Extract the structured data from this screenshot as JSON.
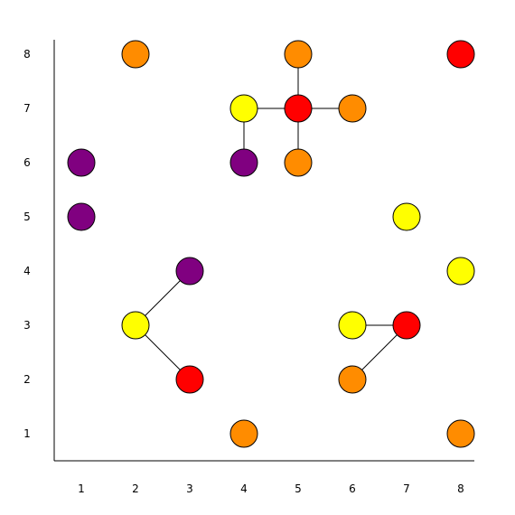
{
  "chart_data": {
    "type": "scatter",
    "x_ticks": [
      "1",
      "2",
      "3",
      "4",
      "5",
      "6",
      "7",
      "8"
    ],
    "y_ticks": [
      "1",
      "2",
      "3",
      "4",
      "5",
      "6",
      "7",
      "8"
    ],
    "xlim": [
      0.5,
      8.25
    ],
    "ylim": [
      0.5,
      8.25
    ],
    "grid": false,
    "colors": {
      "orange": "#ff8c00",
      "red": "#ff0000",
      "yellow": "#ffff00",
      "purple": "#800080"
    },
    "nodes": [
      {
        "id": "n1",
        "x": 2,
        "y": 8,
        "color": "orange"
      },
      {
        "id": "n2",
        "x": 5,
        "y": 8,
        "color": "orange"
      },
      {
        "id": "n3",
        "x": 8,
        "y": 8,
        "color": "red"
      },
      {
        "id": "n4",
        "x": 4,
        "y": 7,
        "color": "yellow"
      },
      {
        "id": "n5",
        "x": 5,
        "y": 7,
        "color": "red"
      },
      {
        "id": "n6",
        "x": 6,
        "y": 7,
        "color": "orange"
      },
      {
        "id": "n7",
        "x": 1,
        "y": 6,
        "color": "purple"
      },
      {
        "id": "n8",
        "x": 4,
        "y": 6,
        "color": "purple"
      },
      {
        "id": "n9",
        "x": 5,
        "y": 6,
        "color": "orange"
      },
      {
        "id": "n10",
        "x": 1,
        "y": 5,
        "color": "purple"
      },
      {
        "id": "n11",
        "x": 7,
        "y": 5,
        "color": "yellow"
      },
      {
        "id": "n12",
        "x": 3,
        "y": 4,
        "color": "purple"
      },
      {
        "id": "n13",
        "x": 8,
        "y": 4,
        "color": "yellow"
      },
      {
        "id": "n14",
        "x": 2,
        "y": 3,
        "color": "yellow"
      },
      {
        "id": "n15",
        "x": 6,
        "y": 3,
        "color": "yellow"
      },
      {
        "id": "n16",
        "x": 7,
        "y": 3,
        "color": "red"
      },
      {
        "id": "n17",
        "x": 3,
        "y": 2,
        "color": "red"
      },
      {
        "id": "n18",
        "x": 6,
        "y": 2,
        "color": "orange"
      },
      {
        "id": "n19",
        "x": 4,
        "y": 1,
        "color": "orange"
      },
      {
        "id": "n20",
        "x": 8,
        "y": 1,
        "color": "orange"
      }
    ],
    "edges": [
      [
        "n2",
        "n5"
      ],
      [
        "n4",
        "n5"
      ],
      [
        "n5",
        "n6"
      ],
      [
        "n5",
        "n9"
      ],
      [
        "n4",
        "n8"
      ],
      [
        "n12",
        "n14"
      ],
      [
        "n14",
        "n17"
      ],
      [
        "n15",
        "n16"
      ],
      [
        "n16",
        "n18"
      ]
    ]
  }
}
